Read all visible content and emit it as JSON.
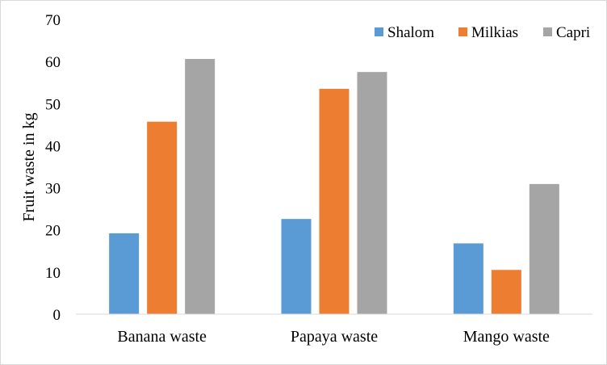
{
  "chart_data": {
    "type": "bar",
    "title": "",
    "xlabel": "",
    "ylabel": "Fruit waste in kg",
    "categories": [
      "Banana waste",
      "Papaya waste",
      "Mango waste"
    ],
    "series": [
      {
        "name": "Shalom",
        "color": "#5B9BD5",
        "values": [
          19.2,
          22.6,
          16.8
        ]
      },
      {
        "name": "Milkias",
        "color": "#ED7D31",
        "values": [
          45.7,
          53.5,
          10.5
        ]
      },
      {
        "name": "Capri",
        "color": "#A5A5A5",
        "values": [
          60.6,
          57.5,
          30.9
        ]
      }
    ],
    "ylim": [
      0,
      70
    ],
    "yticks": [
      "0",
      "10",
      "20",
      "30",
      "40",
      "50",
      "60",
      "70"
    ],
    "grid": false,
    "legend_position": "top-right"
  }
}
